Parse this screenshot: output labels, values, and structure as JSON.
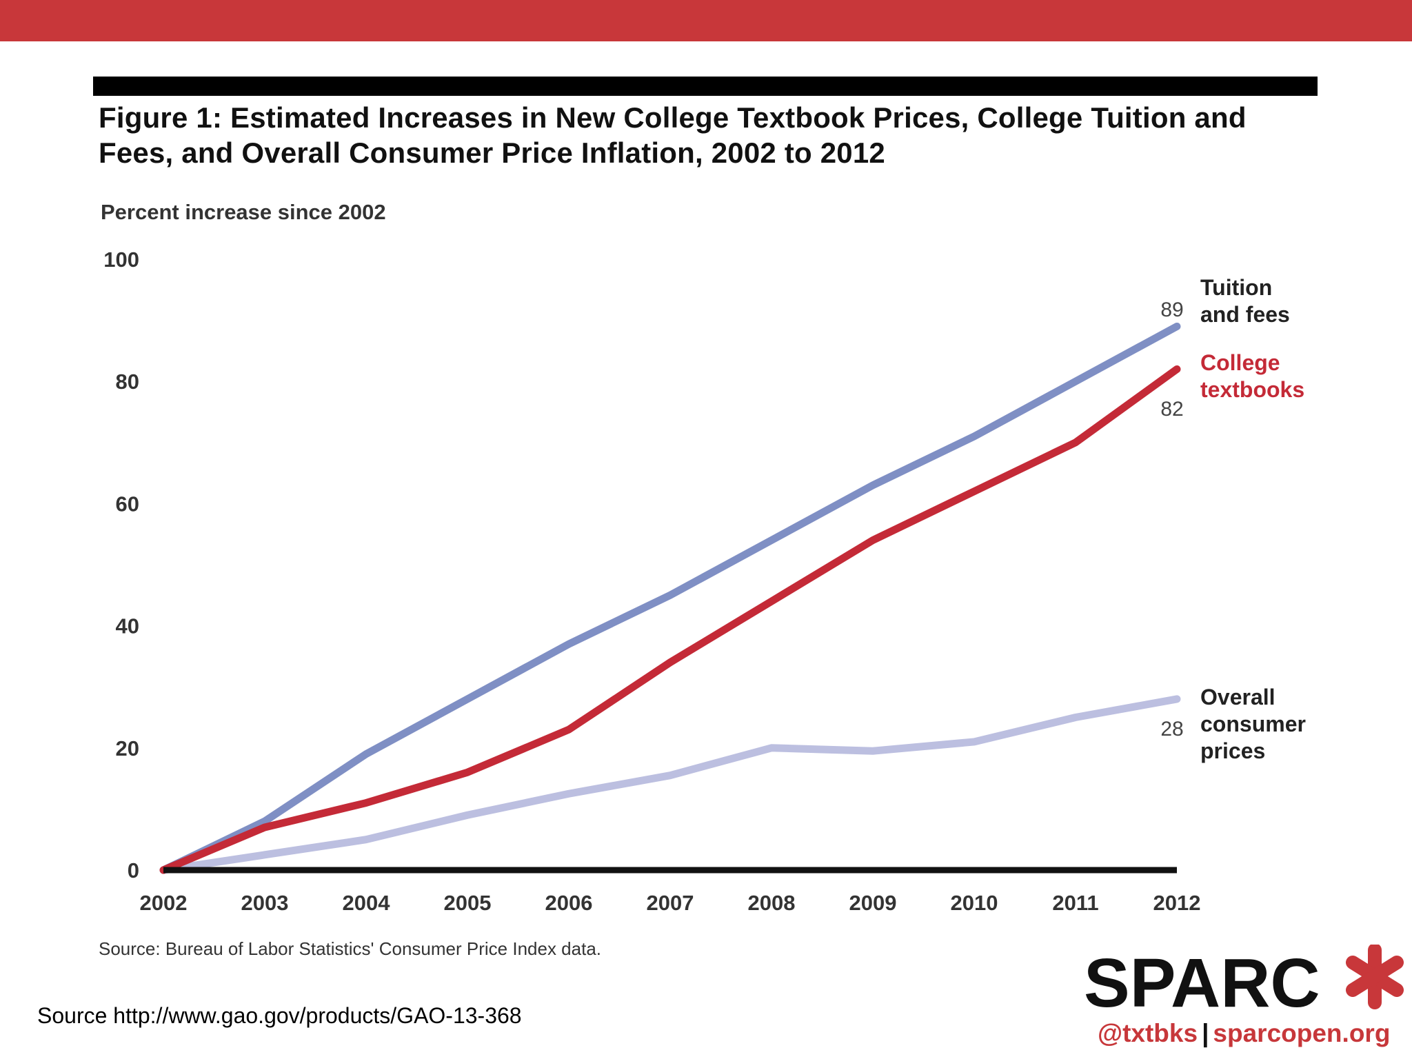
{
  "colors": {
    "banner": "#c8373a",
    "tuition": "#7f8fc4",
    "textbooks": "#c42a37",
    "cpi": "#bcbfe0",
    "axis": "#111111"
  },
  "header": {
    "title_line1": "Figure 1: Estimated Increases in New College Textbook Prices, College Tuition and",
    "title_line2": "Fees, and Overall Consumer Price Inflation, 2002 to 2012"
  },
  "chart_data": {
    "type": "line",
    "title": "Figure 1: Estimated Increases in New College Textbook Prices, College Tuition and Fees, and Overall Consumer Price Inflation, 2002 to 2012",
    "xlabel": "",
    "ylabel": "Percent increase since 2002",
    "x": [
      "2002",
      "2003",
      "2004",
      "2005",
      "2006",
      "2007",
      "2008",
      "2009",
      "2010",
      "2011",
      "2012"
    ],
    "ylim": [
      0,
      100
    ],
    "yticks": [
      "0",
      "20",
      "40",
      "60",
      "80",
      "100"
    ],
    "grid": false,
    "series": [
      {
        "name": "Tuition and fees",
        "label_lines": [
          "Tuition",
          "and fees"
        ],
        "end_label": "89",
        "color_key": "tuition",
        "values": [
          0,
          8,
          19,
          28,
          37,
          45,
          54,
          63,
          71,
          80,
          89
        ]
      },
      {
        "name": "College textbooks",
        "label_lines": [
          "College",
          "textbooks"
        ],
        "end_label": "82",
        "color_key": "textbooks",
        "values": [
          0,
          7,
          11,
          16,
          23,
          34,
          44,
          54,
          62,
          70,
          82
        ]
      },
      {
        "name": "Overall consumer prices",
        "label_lines": [
          "Overall",
          "consumer",
          "prices"
        ],
        "end_label": "28",
        "color_key": "cpi",
        "values": [
          0,
          2.5,
          5,
          9,
          12.5,
          15.5,
          20,
          19.5,
          21,
          25,
          28
        ]
      }
    ]
  },
  "footer": {
    "source_note": "Source: Bureau of Labor Statistics' Consumer Price Index data.",
    "page_source": "Source http://www.gao.gov/products/GAO-13-368",
    "handle": "@txtbks",
    "separator": "|",
    "site": "sparcopen.org",
    "logo_text": "SPARC"
  }
}
